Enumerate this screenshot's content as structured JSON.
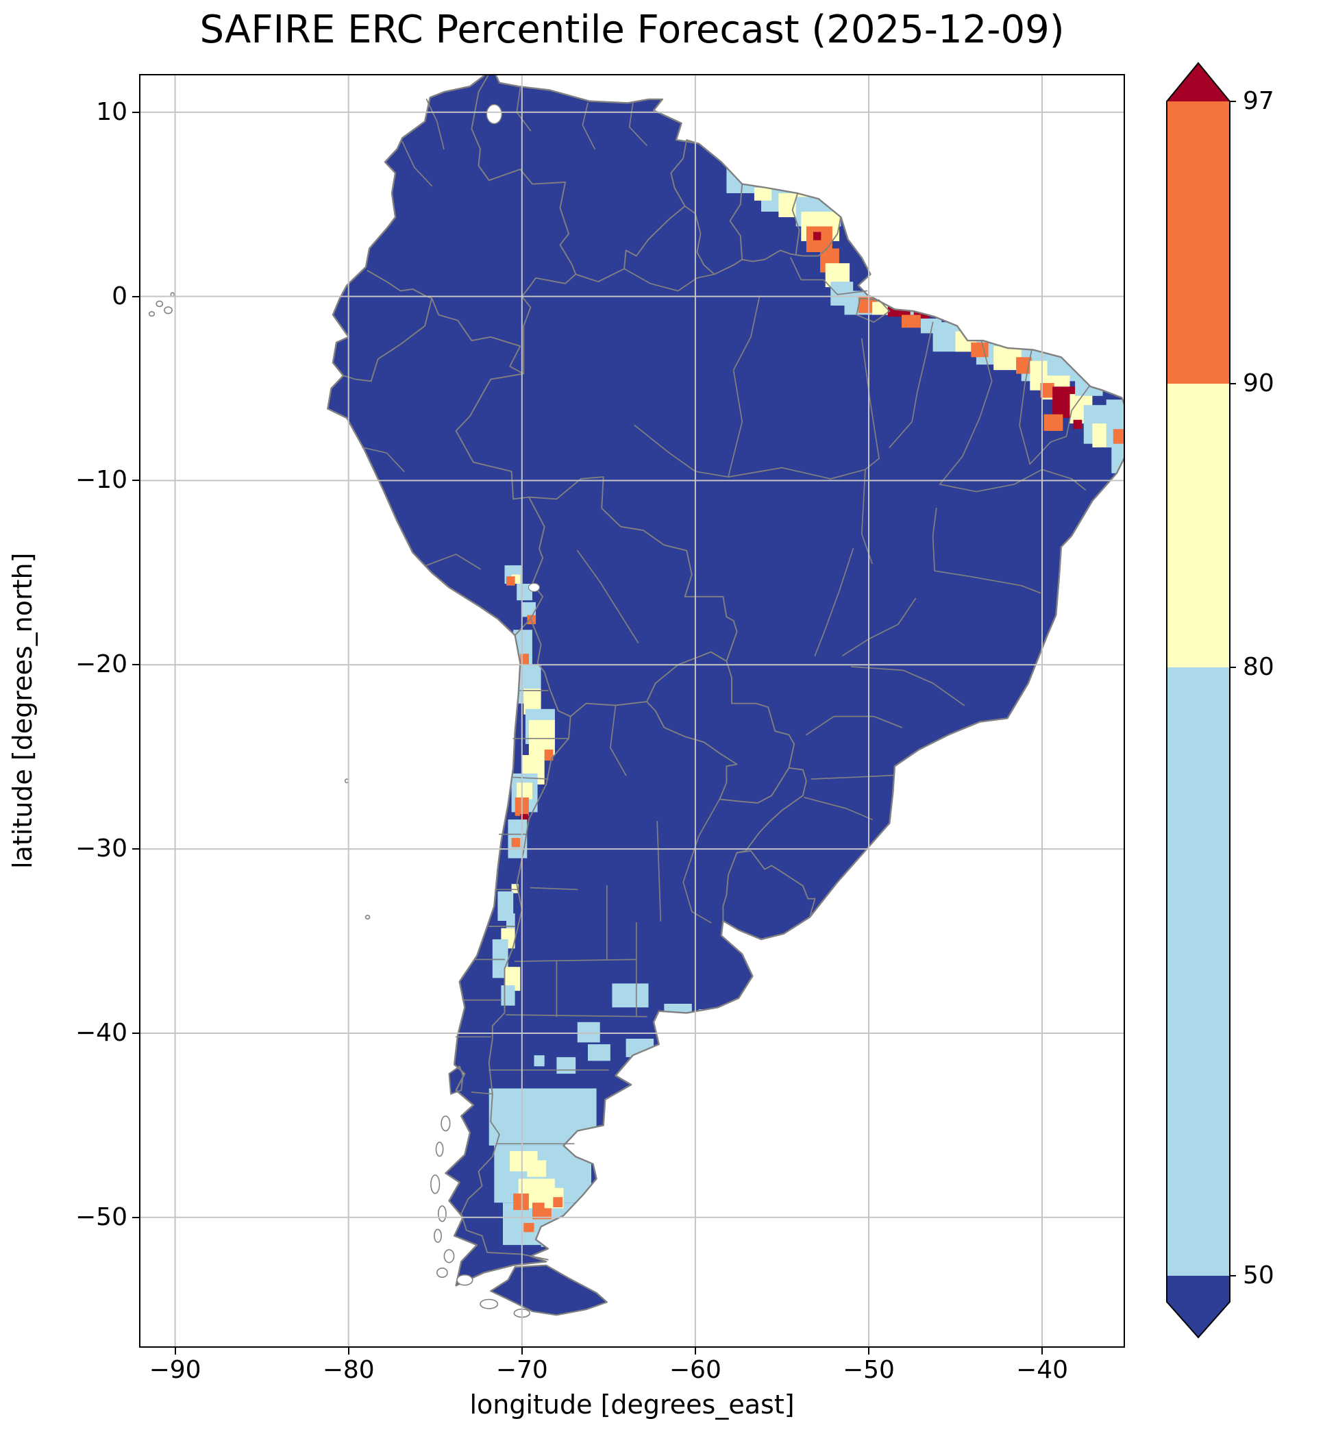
{
  "chart_data": {
    "type": "heatmap",
    "title": "SAFIRE ERC Percentile Forecast (2025-12-09)",
    "forecast_date": "2025-12-09",
    "variable": "ERC Percentile",
    "region": "South America",
    "xlabel": "longitude [degrees_east]",
    "ylabel": "latitude [degrees_north]",
    "xlim": [
      -92,
      -35.3
    ],
    "ylim": [
      -57,
      12
    ],
    "grid": true,
    "x_tick_values": [
      -90,
      -80,
      -70,
      -60,
      -50,
      -40
    ],
    "x_tick_labels": [
      "−90",
      "−80",
      "−70",
      "−60",
      "−50",
      "−40"
    ],
    "y_tick_values": [
      10,
      0,
      -10,
      -20,
      -30,
      -40,
      -50
    ],
    "y_tick_labels": [
      "10",
      "0",
      "−10",
      "−20",
      "−30",
      "−40",
      "−50"
    ],
    "colorbar": {
      "boundaries": [
        50,
        80,
        90,
        97
      ],
      "tick_labels_top_to_bottom": [
        "97",
        "90",
        "80",
        "50"
      ],
      "extend": "both",
      "orientation": "vertical",
      "position": "right",
      "colors": {
        "above_97": "#a50026",
        "90_97": "#f4743e",
        "80_90": "#ffffbf",
        "50_80": "#abd9e9",
        "below_50": "#2e3d96"
      }
    },
    "base_level": "below_50",
    "map_colors": {
      "admin_border": "#808080",
      "coastline": "#808080",
      "grid": "#c4c4c4",
      "ocean": "#ffffff"
    },
    "hotspots": [
      [
        "50_80",
        -58.2,
        7.0,
        2.6,
        1.4
      ],
      [
        "50_80",
        -56.2,
        6.2,
        3.2,
        1.6
      ],
      [
        "80_90",
        -56.6,
        5.9,
        1.0,
        0.7
      ],
      [
        "80_90",
        -55.2,
        5.6,
        2.4,
        1.3
      ],
      [
        "50_80",
        -54.2,
        5.4,
        2.6,
        1.6
      ],
      [
        "80_90",
        -53.9,
        4.6,
        2.2,
        1.6
      ],
      [
        "90_97",
        -53.6,
        3.8,
        1.5,
        1.4
      ],
      [
        "above_97",
        -53.2,
        3.5,
        0.45,
        0.45
      ],
      [
        "90_97",
        -52.8,
        2.6,
        1.1,
        1.3
      ],
      [
        "80_90",
        -52.5,
        1.8,
        1.4,
        1.3
      ],
      [
        "50_80",
        -52.2,
        0.8,
        1.3,
        1.3
      ],
      [
        "50_80",
        -51.4,
        0.3,
        4.6,
        1.3
      ],
      [
        "90_97",
        -50.6,
        0.0,
        1.1,
        0.9
      ],
      [
        "80_90",
        -49.8,
        -0.3,
        1.1,
        0.7
      ],
      [
        "above_97",
        -48.9,
        -0.3,
        1.3,
        0.8
      ],
      [
        "above_97",
        -47.4,
        -0.6,
        0.9,
        0.7
      ],
      [
        "90_97",
        -48.1,
        -1.0,
        1.1,
        0.7
      ],
      [
        "50_80",
        -47.0,
        -1.2,
        1.2,
        0.8
      ],
      [
        "50_80",
        -46.3,
        -1.4,
        3.2,
        1.6
      ],
      [
        "80_90",
        -45.0,
        -1.9,
        1.6,
        1.1
      ],
      [
        "50_80",
        -43.8,
        -2.1,
        3.2,
        1.6
      ],
      [
        "90_97",
        -44.1,
        -2.5,
        1.0,
        0.8
      ],
      [
        "80_90",
        -42.8,
        -2.7,
        2.1,
        1.3
      ],
      [
        "50_80",
        -41.2,
        -2.7,
        2.6,
        1.9
      ],
      [
        "90_97",
        -41.5,
        -3.3,
        0.9,
        0.9
      ],
      [
        "80_90",
        -40.7,
        -3.5,
        1.6,
        1.6
      ],
      [
        "50_80",
        -39.7,
        -3.0,
        2.6,
        1.6
      ],
      [
        "80_90",
        -40.0,
        -4.3,
        1.6,
        1.3
      ],
      [
        "90_97",
        -40.1,
        -4.7,
        0.8,
        0.8
      ],
      [
        "above_97",
        -39.4,
        -4.9,
        1.5,
        1.7
      ],
      [
        "90_97",
        -39.9,
        -6.4,
        1.1,
        0.9
      ],
      [
        "80_90",
        -38.4,
        -5.3,
        1.3,
        1.6
      ],
      [
        "50_80",
        -38.1,
        -3.8,
        1.6,
        1.6
      ],
      [
        "50_80",
        -37.6,
        -5.9,
        1.6,
        2.1
      ],
      [
        "80_90",
        -37.1,
        -6.9,
        1.1,
        1.3
      ],
      [
        "above_97",
        -38.2,
        -6.7,
        0.5,
        0.5
      ],
      [
        "50_80",
        -36.3,
        -5.6,
        1.0,
        2.6
      ],
      [
        "90_97",
        -35.9,
        -7.2,
        0.7,
        0.9
      ],
      [
        "50_80",
        -36.0,
        -8.0,
        0.9,
        1.6
      ],
      [
        "50_80",
        -71.0,
        -14.6,
        1.0,
        1.0
      ],
      [
        "80_90",
        -70.6,
        -15.1,
        0.5,
        0.5
      ],
      [
        "90_97",
        -70.9,
        -15.2,
        0.5,
        0.5
      ],
      [
        "50_80",
        -70.3,
        -15.6,
        0.9,
        0.9
      ],
      [
        "50_80",
        -70.0,
        -16.6,
        0.8,
        0.8
      ],
      [
        "90_97",
        -69.7,
        -17.3,
        0.5,
        0.5
      ],
      [
        "50_80",
        -70.5,
        -18.1,
        1.1,
        1.9
      ],
      [
        "90_97",
        -70.1,
        -19.4,
        0.5,
        0.6
      ],
      [
        "50_80",
        -70.2,
        -20.0,
        1.3,
        2.1
      ],
      [
        "80_90",
        -69.9,
        -21.3,
        1.0,
        1.4
      ],
      [
        "50_80",
        -69.8,
        -22.4,
        1.7,
        1.9
      ],
      [
        "80_90",
        -69.6,
        -23.0,
        1.5,
        1.9
      ],
      [
        "90_97",
        -68.7,
        -24.6,
        0.5,
        0.6
      ],
      [
        "80_90",
        -70.0,
        -24.9,
        1.3,
        1.6
      ],
      [
        "50_80",
        -70.6,
        -25.9,
        1.5,
        2.1
      ],
      [
        "80_90",
        -70.3,
        -26.4,
        0.9,
        0.9
      ],
      [
        "90_97",
        -70.4,
        -27.2,
        0.8,
        1.0
      ],
      [
        "above_97",
        -70.1,
        -28.1,
        0.45,
        0.55
      ],
      [
        "50_80",
        -70.8,
        -28.4,
        1.1,
        2.1
      ],
      [
        "90_97",
        -70.6,
        -29.4,
        0.5,
        0.5
      ],
      [
        "80_90",
        -70.6,
        -31.9,
        0.4,
        0.5
      ],
      [
        "50_80",
        -71.4,
        -32.3,
        0.9,
        1.6
      ],
      [
        "50_80",
        -70.9,
        -33.5,
        0.5,
        0.8
      ],
      [
        "80_90",
        -71.2,
        -34.3,
        0.8,
        1.1
      ],
      [
        "50_80",
        -71.7,
        -34.9,
        0.9,
        2.1
      ],
      [
        "80_90",
        -71.0,
        -36.4,
        0.9,
        1.3
      ],
      [
        "50_80",
        -71.2,
        -37.4,
        0.8,
        1.1
      ],
      [
        "50_80",
        -64.8,
        -37.3,
        2.1,
        1.3
      ],
      [
        "50_80",
        -61.8,
        -38.4,
        1.6,
        1.1
      ],
      [
        "50_80",
        -59.8,
        -38.7,
        0.7,
        0.7
      ],
      [
        "50_80",
        -66.8,
        -39.4,
        1.3,
        1.1
      ],
      [
        "50_80",
        -64.0,
        -40.3,
        1.6,
        1.0
      ],
      [
        "50_80",
        -68.0,
        -41.3,
        1.1,
        0.9
      ],
      [
        "50_80",
        -66.2,
        -40.6,
        1.3,
        0.9
      ],
      [
        "50_80",
        -69.3,
        -41.2,
        0.6,
        0.6
      ],
      [
        "50_80",
        -71.9,
        -43.0,
        6.2,
        3.1
      ],
      [
        "50_80",
        -71.6,
        -46.1,
        5.6,
        3.1
      ],
      [
        "50_80",
        -71.1,
        -49.2,
        4.1,
        2.3
      ],
      [
        "80_90",
        -70.7,
        -46.4,
        1.6,
        1.1
      ],
      [
        "80_90",
        -69.7,
        -46.9,
        1.1,
        0.9
      ],
      [
        "80_90",
        -70.2,
        -47.9,
        2.1,
        1.6
      ],
      [
        "90_97",
        -70.5,
        -48.7,
        0.9,
        0.9
      ],
      [
        "90_97",
        -69.4,
        -49.2,
        1.1,
        0.9
      ],
      [
        "80_90",
        -68.7,
        -48.4,
        1.1,
        1.1
      ],
      [
        "90_97",
        -68.2,
        -48.9,
        0.55,
        0.55
      ],
      [
        "50_80",
        -68.9,
        -50.9,
        1.2,
        0.7
      ],
      [
        "90_97",
        -69.9,
        -50.3,
        0.6,
        0.5
      ]
    ]
  }
}
